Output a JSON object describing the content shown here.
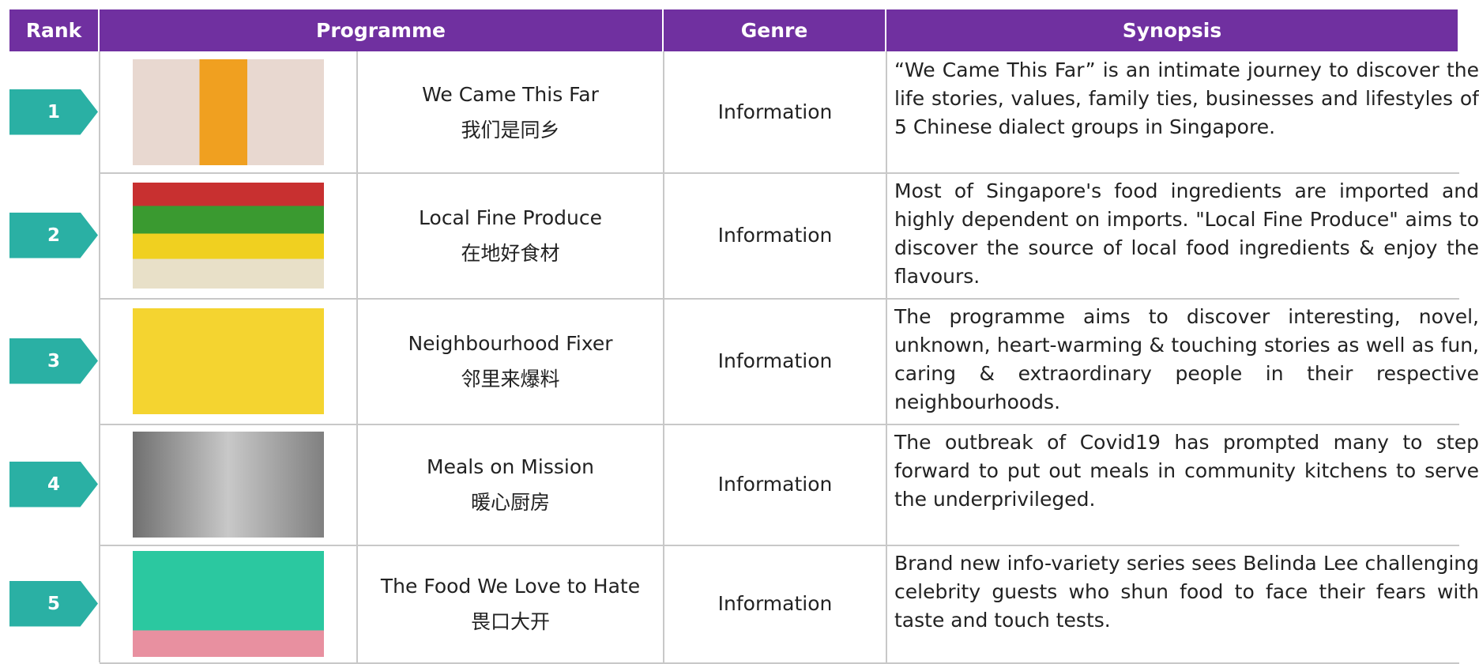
{
  "table": {
    "headers": [
      "Rank",
      "Programme",
      "Genre",
      "Synopsis"
    ],
    "rows": [
      {
        "rank": "1",
        "title": "We Came This Far",
        "title_zh": "我们是同乡",
        "genre": "Information",
        "synopsis": "“We Came This Far” is an intimate journey to discover the life stories, values, family ties, businesses and lifestyles of 5 Chinese dialect groups in Singapore."
      },
      {
        "rank": "2",
        "title": "Local Fine Produce",
        "title_zh": "在地好食材",
        "genre": "Information",
        "synopsis": "Most of Singapore's food ingredients are imported and highly dependent on imports. \"Local Fine Produce\" aims to discover the source of local food ingredients & enjoy the flavours."
      },
      {
        "rank": "3",
        "title": "Neighbourhood Fixer",
        "title_zh": "邻里来爆料",
        "genre": "Information",
        "synopsis": "The programme aims to discover interesting, novel, unknown, heart-warming & touching stories as well as fun, caring & extraordinary people in their respective neighbourhoods."
      },
      {
        "rank": "4",
        "title": "Meals on Mission",
        "title_zh": "暖心厨房",
        "genre": "Information",
        "synopsis": "The outbreak of Covid19 has prompted many to step forward to put out meals in community kitchens to serve the underprivileged."
      },
      {
        "rank": "5",
        "title": "The Food We Love to Hate",
        "title_zh": "畏口大开",
        "genre": "Information",
        "synopsis": "Brand new info-variety series sees Belinda Lee challenging celebrity guests who shun food to face their fears with taste and touch tests."
      }
    ]
  }
}
